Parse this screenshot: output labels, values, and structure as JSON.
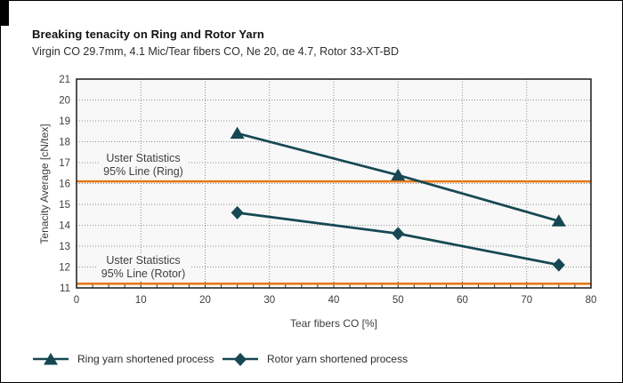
{
  "chart_data": {
    "type": "line",
    "title": "Breaking tenacity on Ring and Rotor Yarn",
    "subtitle": "Virgin CO 29.7mm, 4.1 Mic/Tear fibers CO, Ne 20, αe 4.7, Rotor 33-XT-BD",
    "xlabel": "Tear fibers CO [%]",
    "ylabel": "Tenacity Average [cN/tex]",
    "xlim": [
      0,
      80
    ],
    "ylim": [
      11,
      21
    ],
    "x_major_ticks": [
      0,
      10,
      20,
      30,
      40,
      50,
      60,
      70,
      80
    ],
    "x_minor_step": 2.5,
    "y_ticks": [
      11,
      12,
      13,
      14,
      15,
      16,
      17,
      18,
      19,
      20,
      21
    ],
    "grid": "dotted",
    "x": [
      25,
      50,
      75
    ],
    "series": [
      {
        "name": "Ring yarn shortened process",
        "marker": "triangle",
        "values": [
          18.4,
          16.4,
          14.2
        ]
      },
      {
        "name": "Rotor yarn shortened process",
        "marker": "diamond",
        "values": [
          14.6,
          13.6,
          12.1
        ]
      }
    ],
    "reference_lines": [
      {
        "value": 16.1,
        "label_lines": [
          "Uster Statistics",
          "95% Line (Ring)"
        ]
      },
      {
        "value": 11.2,
        "label_lines": [
          "Uster Statistics",
          "95% Line (Rotor)"
        ]
      }
    ],
    "legend_position": "bottom-left"
  },
  "colors": {
    "series": "#164853",
    "reference_line": "#e87511",
    "grid": "#909090",
    "tick_text": "#3d3d3d",
    "plot_border": "#1a1a1a",
    "plot_bg": "#f8f8f8"
  }
}
